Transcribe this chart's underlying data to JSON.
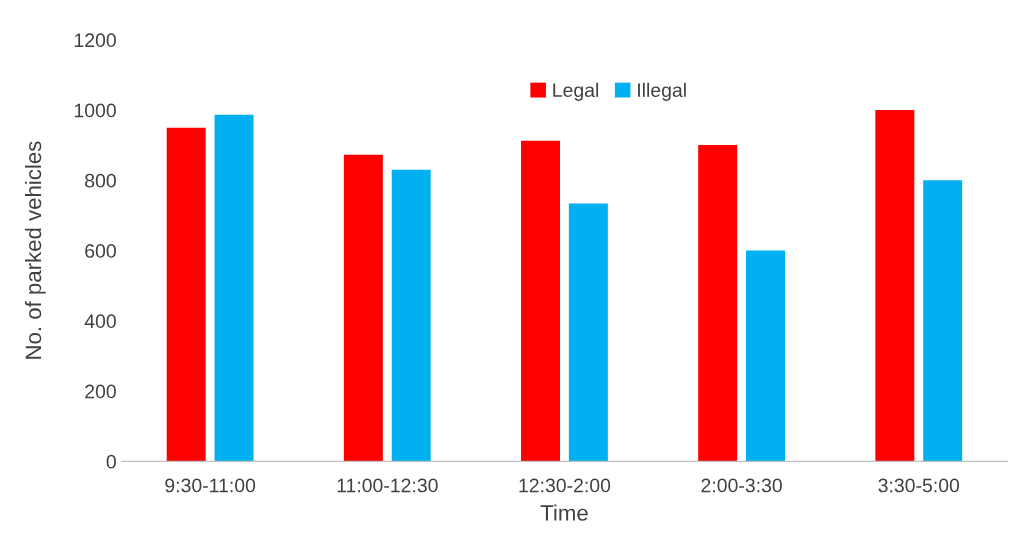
{
  "chart_data": {
    "type": "bar",
    "xlabel": "Time",
    "ylabel": "No. of parked vehicles",
    "categories": [
      "9:30-11:00",
      "11:00-12:30",
      "12:30-2:00",
      "2:00-3:30",
      "3:30-5:00"
    ],
    "series": [
      {
        "name": "Legal",
        "color": "#ff0000",
        "values": [
          950,
          873,
          913,
          901,
          1000
        ]
      },
      {
        "name": "Illegal",
        "color": "#00b0f0",
        "values": [
          987,
          830,
          734,
          600,
          800
        ]
      }
    ],
    "ylim": [
      0,
      1200
    ],
    "yticks": [
      0,
      200,
      400,
      600,
      800,
      1000,
      1200
    ],
    "grid": false,
    "legend": "top right"
  }
}
